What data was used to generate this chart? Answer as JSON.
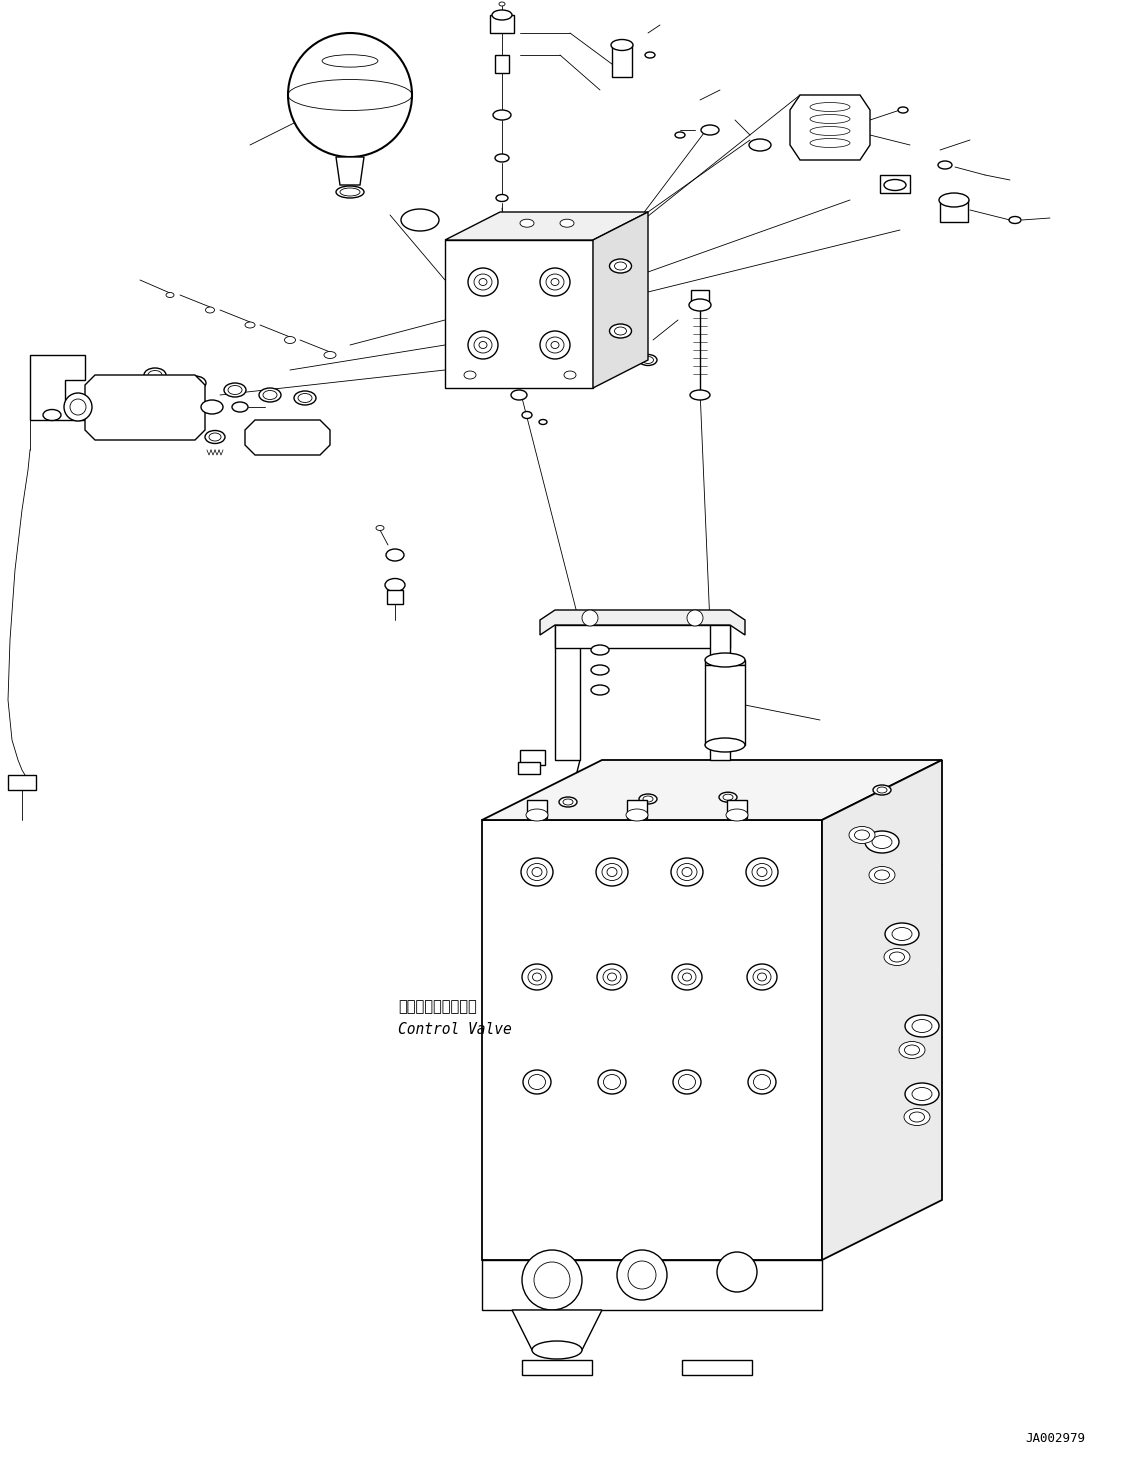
{
  "bg_color": "#ffffff",
  "lc": "#000000",
  "figsize": [
    11.47,
    14.62
  ],
  "dpi": 100,
  "label_ja": "コントロールバルブ",
  "label_en": "Control Valve",
  "doc_number": "JA002979",
  "lw": 1.0,
  "tlw": 0.6
}
